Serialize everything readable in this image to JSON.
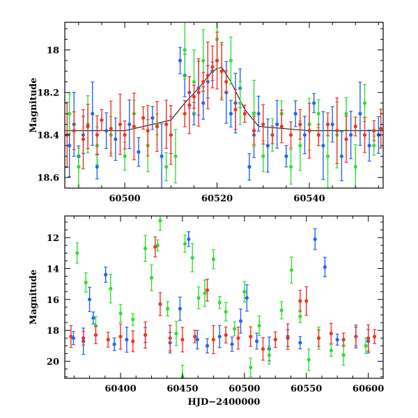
{
  "chart_data": [
    {
      "type": "scatter",
      "ylabel": "Magnitude",
      "xlabel": "",
      "xlim": [
        60487,
        60556
      ],
      "ylim": [
        18.65,
        17.87
      ],
      "y_inverted": true,
      "xticks": [
        60500,
        60520,
        60540
      ],
      "yticks": [
        18,
        18.2,
        18.4,
        18.6
      ],
      "ytick_labels": [
        "18",
        "18.2",
        "18.4",
        "18.6"
      ],
      "error_bars": true,
      "series": [
        {
          "color": "#2266ee",
          "points": [
            [
              60488,
              18.45
            ],
            [
              60489,
              18.35
            ],
            [
              60490,
              18.5
            ],
            [
              60491,
              18.4
            ],
            [
              60493,
              18.3
            ],
            [
              60494,
              18.55
            ],
            [
              60496,
              18.38
            ],
            [
              60498,
              18.42
            ],
            [
              60501,
              18.35
            ],
            [
              60503,
              18.48
            ],
            [
              60506,
              18.32
            ],
            [
              60508,
              18.5
            ],
            [
              60510,
              18.4
            ],
            [
              60512,
              18.05
            ],
            [
              60513,
              18.12
            ],
            [
              60514,
              18.2
            ],
            [
              60515,
              18.3
            ],
            [
              60516,
              18.18
            ],
            [
              60517,
              18.25
            ],
            [
              60518,
              18.15
            ],
            [
              60519,
              18.1
            ],
            [
              60522,
              18.2
            ],
            [
              60523,
              18.3
            ],
            [
              60524,
              18.25
            ],
            [
              60525,
              18.18
            ],
            [
              60527,
              18.55
            ],
            [
              60528,
              18.4
            ],
            [
              60529,
              18.3
            ],
            [
              60531,
              18.45
            ],
            [
              60533,
              18.35
            ],
            [
              60535,
              18.5
            ],
            [
              60537,
              18.3
            ],
            [
              60539,
              18.4
            ],
            [
              60541,
              18.25
            ],
            [
              60543,
              18.45
            ],
            [
              60545,
              18.35
            ],
            [
              60547,
              18.5
            ],
            [
              60549,
              18.4
            ],
            [
              60551,
              18.3
            ],
            [
              60553,
              18.45
            ],
            [
              60555,
              18.4
            ]
          ]
        },
        {
          "color": "#33dd33",
          "points": [
            [
              60488,
              18.3
            ],
            [
              60490,
              18.55
            ],
            [
              60492,
              18.35
            ],
            [
              60494,
              18.45
            ],
            [
              60497,
              18.4
            ],
            [
              60500,
              18.5
            ],
            [
              60502,
              18.3
            ],
            [
              60505,
              18.45
            ],
            [
              60507,
              18.35
            ],
            [
              60509,
              18.55
            ],
            [
              60511,
              18.5
            ],
            [
              60513,
              18.0
            ],
            [
              60515,
              18.15
            ],
            [
              60517,
              18.05
            ],
            [
              60520,
              17.95
            ],
            [
              60521,
              18.1
            ],
            [
              60523,
              18.05
            ],
            [
              60525,
              18.25
            ],
            [
              60528,
              18.3
            ],
            [
              60530,
              18.5
            ],
            [
              60532,
              18.4
            ],
            [
              60534,
              18.3
            ],
            [
              60536,
              18.55
            ],
            [
              60538,
              18.45
            ],
            [
              60540,
              18.35
            ],
            [
              60542,
              18.3
            ],
            [
              60544,
              18.5
            ],
            [
              60546,
              18.4
            ],
            [
              60548,
              18.3
            ],
            [
              60550,
              18.55
            ],
            [
              60552,
              18.25
            ],
            [
              60554,
              18.45
            ]
          ]
        },
        {
          "color": "#ee3322",
          "points": [
            [
              60487.5,
              18.4
            ],
            [
              60489,
              18.38
            ],
            [
              60491,
              18.42
            ],
            [
              60492,
              18.36
            ],
            [
              60494,
              18.4
            ],
            [
              60495,
              18.33
            ],
            [
              60497,
              18.37
            ],
            [
              60499,
              18.35
            ],
            [
              60500,
              18.4
            ],
            [
              60502,
              18.36
            ],
            [
              60504,
              18.32
            ],
            [
              60505,
              18.38
            ],
            [
              60507,
              18.36
            ],
            [
              60509,
              18.35
            ],
            [
              60510,
              18.4
            ],
            [
              60513,
              18.3
            ],
            [
              60514,
              18.26
            ],
            [
              60515,
              18.22
            ],
            [
              60516,
              18.2
            ],
            [
              60517,
              18.15
            ],
            [
              60518,
              18.12
            ],
            [
              60519,
              18.08
            ],
            [
              60520,
              18.05
            ],
            [
              60521,
              18.1
            ],
            [
              60522,
              18.15
            ],
            [
              60524,
              18.28
            ],
            [
              60526,
              18.3
            ],
            [
              60528,
              18.38
            ],
            [
              60530,
              18.35
            ],
            [
              60532,
              18.4
            ],
            [
              60534,
              18.36
            ],
            [
              60536,
              18.4
            ],
            [
              60538,
              18.35
            ],
            [
              60540,
              18.38
            ],
            [
              60542,
              18.4
            ],
            [
              60544,
              18.35
            ],
            [
              60546,
              18.38
            ],
            [
              60548,
              18.42
            ],
            [
              60550,
              18.36
            ],
            [
              60552,
              18.4
            ],
            [
              60554,
              18.38
            ],
            [
              60555.5,
              18.37
            ]
          ]
        }
      ],
      "model_curve": [
        [
          60487,
          18.38
        ],
        [
          60500,
          18.38
        ],
        [
          60510,
          18.33
        ],
        [
          60513,
          18.25
        ],
        [
          60516,
          18.18
        ],
        [
          60519,
          18.1
        ],
        [
          60521,
          18.08
        ],
        [
          60523,
          18.15
        ],
        [
          60526,
          18.28
        ],
        [
          60529,
          18.36
        ],
        [
          60540,
          18.38
        ],
        [
          60556,
          18.38
        ]
      ]
    },
    {
      "type": "scatter",
      "ylabel": "Magnitude",
      "xlabel": "HJD−2400000",
      "xlim": [
        60355,
        60612
      ],
      "ylim": [
        21.1,
        10.6
      ],
      "y_inverted": true,
      "xticks": [
        60400,
        60450,
        60500,
        60550,
        60600
      ],
      "yticks": [
        12,
        14,
        16,
        18,
        20
      ],
      "ytick_labels": [
        "12",
        "14",
        "16",
        "18",
        "20"
      ],
      "error_bars": true,
      "series": [
        {
          "color": "#2266ee",
          "points": [
            [
              60362,
              18.5
            ],
            [
              60370,
              18.7
            ],
            [
              60375,
              16.0
            ],
            [
              60378,
              17.2
            ],
            [
              60388,
              14.4
            ],
            [
              60395,
              18.9
            ],
            [
              60405,
              18.6
            ],
            [
              60420,
              18.3
            ],
            [
              60440,
              18.8
            ],
            [
              60448,
              16.6
            ],
            [
              60455,
              12.1
            ],
            [
              60462,
              18.6
            ],
            [
              60470,
              19.0
            ],
            [
              60480,
              18.4
            ],
            [
              60490,
              18.9
            ],
            [
              60497,
              17.4
            ],
            [
              60502,
              15.9
            ],
            [
              60510,
              18.7
            ],
            [
              60520,
              19.2
            ],
            [
              60535,
              18.5
            ],
            [
              60545,
              18.8
            ],
            [
              60557,
              12.1
            ],
            [
              60565,
              13.9
            ],
            [
              60575,
              18.6
            ],
            [
              60590,
              18.4
            ],
            [
              60600,
              18.7
            ]
          ]
        },
        {
          "color": "#33dd33",
          "points": [
            [
              60365,
              13.0
            ],
            [
              60372,
              14.9
            ],
            [
              60380,
              17.7
            ],
            [
              60392,
              15.3
            ],
            [
              60400,
              16.9
            ],
            [
              60410,
              17.3
            ],
            [
              60420,
              12.7
            ],
            [
              60425,
              14.6
            ],
            [
              60430,
              12.5
            ],
            [
              60432,
              10.9
            ],
            [
              60438,
              16.6
            ],
            [
              60445,
              18.2
            ],
            [
              60452,
              12.4
            ],
            [
              60458,
              13.3
            ],
            [
              60463,
              15.9
            ],
            [
              60468,
              15.6
            ],
            [
              60475,
              13.4
            ],
            [
              60480,
              16.2
            ],
            [
              60485,
              16.8
            ],
            [
              60492,
              17.9
            ],
            [
              60500,
              15.5
            ],
            [
              60505,
              20.4
            ],
            [
              60512,
              17.7
            ],
            [
              60520,
              19.6
            ],
            [
              60530,
              16.7
            ],
            [
              60538,
              14.1
            ],
            [
              60545,
              17.1
            ],
            [
              60552,
              19.9
            ],
            [
              60560,
              18.5
            ],
            [
              60570,
              19.3
            ],
            [
              60580,
              19.6
            ],
            [
              60598,
              19.0
            ],
            [
              60450,
              21.0
            ]
          ]
        },
        {
          "color": "#ee3322",
          "points": [
            [
              60360,
              18.4
            ],
            [
              60370,
              18.5
            ],
            [
              60380,
              18.3
            ],
            [
              60390,
              18.6
            ],
            [
              60400,
              18.4
            ],
            [
              60410,
              18.7
            ],
            [
              60420,
              18.3
            ],
            [
              60428,
              12.6
            ],
            [
              60432,
              16.3
            ],
            [
              60440,
              18.5
            ],
            [
              60450,
              18.6
            ],
            [
              60460,
              18.4
            ],
            [
              60470,
              15.4
            ],
            [
              60475,
              18.6
            ],
            [
              60485,
              18.3
            ],
            [
              60495,
              18.5
            ],
            [
              60505,
              18.4
            ],
            [
              60515,
              19.2
            ],
            [
              60525,
              18.6
            ],
            [
              60535,
              18.4
            ],
            [
              60545,
              16.1
            ],
            [
              60550,
              16.1
            ],
            [
              60560,
              18.5
            ],
            [
              60570,
              18.2
            ],
            [
              60580,
              18.6
            ],
            [
              60590,
              18.4
            ],
            [
              60600,
              18.5
            ],
            [
              60605,
              18.4
            ]
          ]
        }
      ]
    }
  ]
}
